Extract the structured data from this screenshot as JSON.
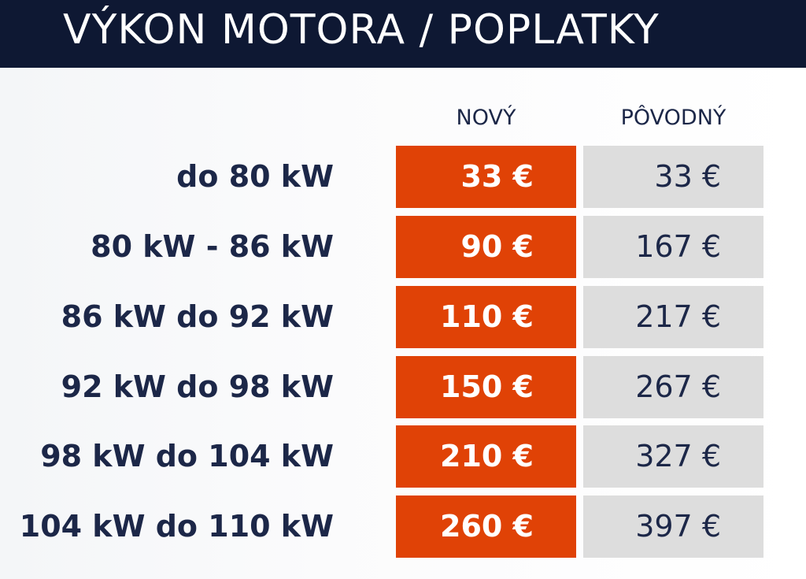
{
  "header": {
    "title": "VÝKON MOTORA / POPLATKY"
  },
  "table": {
    "columns": [
      "NOVÝ",
      "PÔVODNÝ"
    ],
    "rows": [
      [
        "do 80 kW",
        "33 €",
        "33 €"
      ],
      [
        "80 kW - 86 kW",
        "90 €",
        "167 €"
      ],
      [
        "86 kW do 92 kW",
        "110 €",
        "217 €"
      ],
      [
        "92 kW do 98 kW",
        "150 €",
        "267 €"
      ],
      [
        "98 kW do 104 kW",
        "210 €",
        "327 €"
      ],
      [
        "104 kW do 110 kW",
        "260 €",
        "397 €"
      ]
    ]
  }
}
